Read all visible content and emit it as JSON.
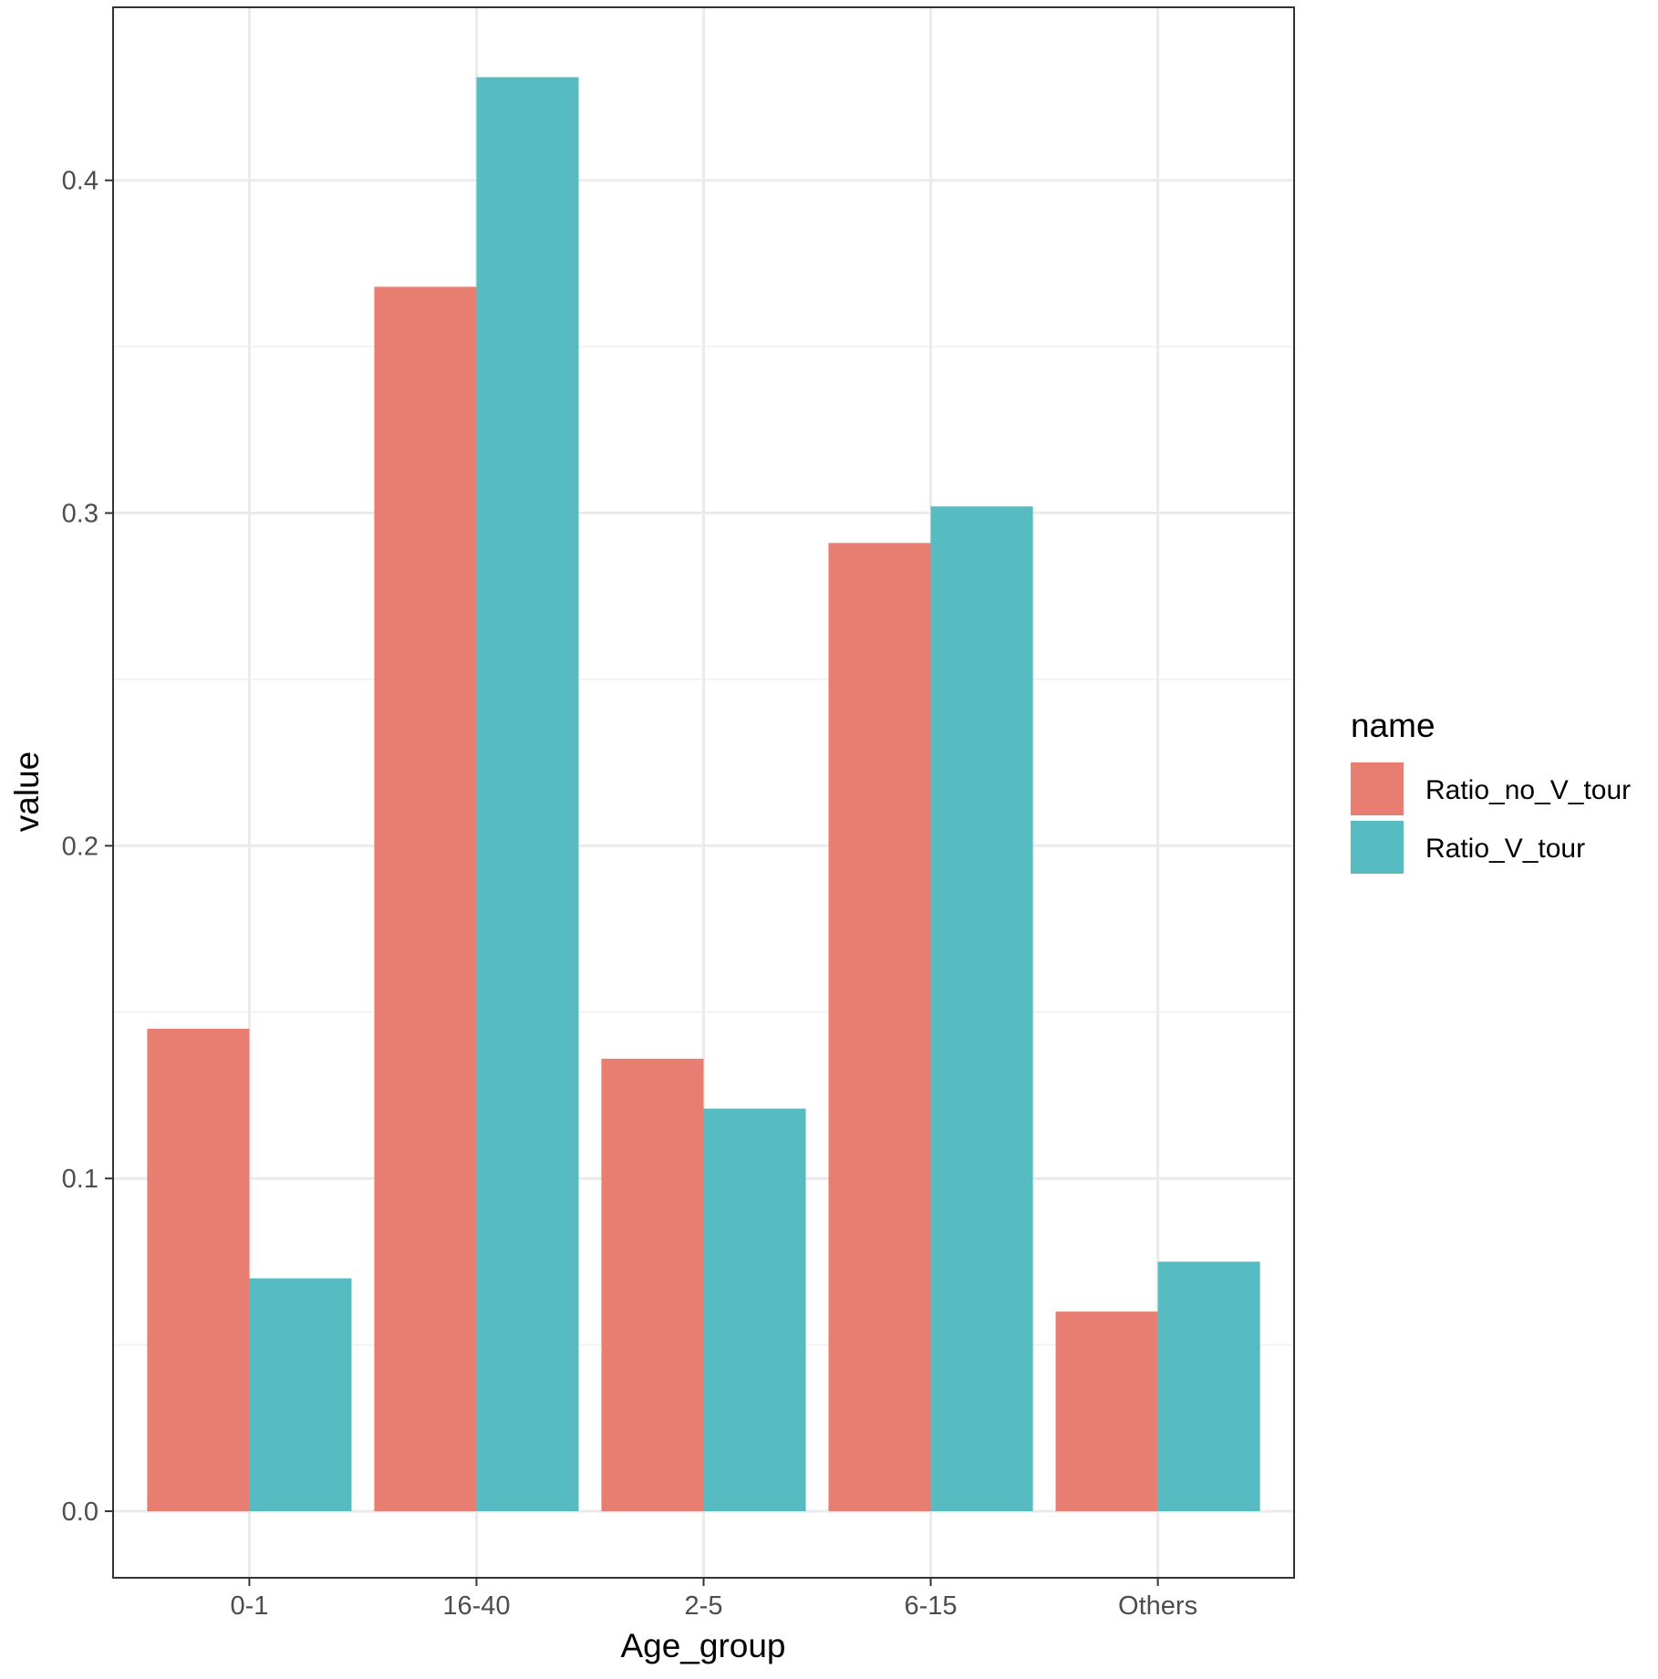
{
  "chart_data": {
    "type": "bar",
    "title": "",
    "xlabel": "Age_group",
    "ylabel": "value",
    "categories": [
      "0-1",
      "16-40",
      "2-5",
      "6-15",
      "Others"
    ],
    "series": [
      {
        "name": "Ratio_no_V_tour",
        "color": "#E87E72",
        "values": [
          0.145,
          0.368,
          0.136,
          0.291,
          0.06
        ]
      },
      {
        "name": "Ratio_V_tour",
        "color": "#56BCC2",
        "values": [
          0.07,
          0.431,
          0.121,
          0.302,
          0.075
        ]
      }
    ],
    "ylim": [
      -0.02,
      0.452
    ],
    "yticks": [
      0.0,
      0.1,
      0.2,
      0.3,
      0.4
    ],
    "ytick_labels": [
      "0.0",
      "0.1",
      "0.2",
      "0.3",
      "0.4"
    ],
    "grid": true,
    "legend": {
      "title": "name",
      "placement": "right"
    }
  }
}
